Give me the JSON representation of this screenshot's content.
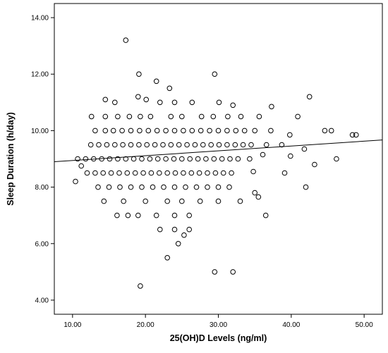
{
  "chart_data": {
    "type": "scatter",
    "title": "",
    "xlabel": "25(OH)D Levels (ng/ml)",
    "ylabel": "Sleep Duration (h/day)",
    "xlim": [
      7.5,
      52.5
    ],
    "ylim": [
      3.5,
      14.5
    ],
    "x_ticks": [
      10,
      20,
      30,
      40,
      50
    ],
    "y_ticks": [
      4,
      6,
      8,
      10,
      12,
      14
    ],
    "x_tick_labels": [
      "10.00",
      "20.00",
      "30.00",
      "40.00",
      "50.00"
    ],
    "y_tick_labels": [
      "4.00",
      "6.00",
      "8.00",
      "10.00",
      "12.00",
      "14.00"
    ],
    "grid": false,
    "legend": "none",
    "fit_line": {
      "x": [
        7.5,
        52.5
      ],
      "y": [
        8.9,
        9.67
      ]
    },
    "points": [
      [
        17.3,
        13.2
      ],
      [
        19.1,
        12.0
      ],
      [
        29.5,
        12.0
      ],
      [
        21.5,
        11.75
      ],
      [
        23.3,
        11.5
      ],
      [
        19.0,
        11.2
      ],
      [
        20.1,
        11.1
      ],
      [
        42.5,
        11.2
      ],
      [
        14.5,
        11.1
      ],
      [
        15.8,
        11.0
      ],
      [
        22.0,
        11.0
      ],
      [
        24.0,
        11.0
      ],
      [
        26.4,
        11.0
      ],
      [
        30.1,
        11.0
      ],
      [
        32.0,
        10.9
      ],
      [
        37.3,
        10.85
      ],
      [
        12.6,
        10.5
      ],
      [
        14.5,
        10.5
      ],
      [
        16.2,
        10.5
      ],
      [
        17.8,
        10.5
      ],
      [
        19.3,
        10.5
      ],
      [
        20.7,
        10.5
      ],
      [
        23.5,
        10.5
      ],
      [
        25.0,
        10.5
      ],
      [
        27.7,
        10.5
      ],
      [
        29.3,
        10.5
      ],
      [
        31.3,
        10.5
      ],
      [
        33.1,
        10.5
      ],
      [
        35.6,
        10.5
      ],
      [
        40.9,
        10.5
      ],
      [
        13.1,
        10.0
      ],
      [
        14.5,
        10.0
      ],
      [
        15.6,
        10.0
      ],
      [
        16.8,
        10.0
      ],
      [
        18.0,
        10.0
      ],
      [
        19.2,
        10.0
      ],
      [
        20.4,
        10.0
      ],
      [
        21.6,
        10.0
      ],
      [
        22.8,
        10.0
      ],
      [
        24.0,
        10.0
      ],
      [
        25.2,
        10.0
      ],
      [
        26.4,
        10.0
      ],
      [
        27.6,
        10.0
      ],
      [
        28.8,
        10.0
      ],
      [
        30.0,
        10.0
      ],
      [
        31.2,
        10.0
      ],
      [
        32.4,
        10.0
      ],
      [
        33.6,
        10.0
      ],
      [
        35.0,
        10.0
      ],
      [
        37.2,
        10.0
      ],
      [
        44.6,
        10.0
      ],
      [
        45.5,
        10.0
      ],
      [
        48.4,
        9.85
      ],
      [
        48.9,
        9.85
      ],
      [
        39.8,
        9.85
      ],
      [
        12.5,
        9.5
      ],
      [
        13.6,
        9.5
      ],
      [
        14.7,
        9.5
      ],
      [
        15.8,
        9.5
      ],
      [
        16.9,
        9.5
      ],
      [
        18.0,
        9.5
      ],
      [
        19.1,
        9.5
      ],
      [
        20.2,
        9.5
      ],
      [
        21.3,
        9.5
      ],
      [
        22.4,
        9.5
      ],
      [
        23.5,
        9.5
      ],
      [
        24.6,
        9.5
      ],
      [
        25.7,
        9.5
      ],
      [
        26.8,
        9.5
      ],
      [
        27.9,
        9.5
      ],
      [
        29.0,
        9.5
      ],
      [
        30.1,
        9.5
      ],
      [
        31.2,
        9.5
      ],
      [
        32.3,
        9.5
      ],
      [
        33.4,
        9.5
      ],
      [
        34.5,
        9.5
      ],
      [
        36.6,
        9.5
      ],
      [
        38.7,
        9.5
      ],
      [
        41.8,
        9.35
      ],
      [
        10.7,
        9.0
      ],
      [
        11.8,
        9.0
      ],
      [
        12.9,
        9.0
      ],
      [
        14.0,
        9.0
      ],
      [
        15.1,
        9.0
      ],
      [
        16.2,
        9.0
      ],
      [
        17.3,
        9.0
      ],
      [
        18.4,
        9.0
      ],
      [
        19.5,
        9.0
      ],
      [
        20.6,
        9.0
      ],
      [
        21.7,
        9.0
      ],
      [
        22.8,
        9.0
      ],
      [
        23.9,
        9.0
      ],
      [
        25.0,
        9.0
      ],
      [
        26.1,
        9.0
      ],
      [
        27.2,
        9.0
      ],
      [
        28.3,
        9.0
      ],
      [
        29.4,
        9.0
      ],
      [
        30.5,
        9.0
      ],
      [
        31.6,
        9.0
      ],
      [
        32.7,
        9.0
      ],
      [
        34.3,
        9.0
      ],
      [
        36.1,
        9.15
      ],
      [
        39.9,
        9.1
      ],
      [
        46.2,
        9.0
      ],
      [
        12.0,
        8.5
      ],
      [
        13.1,
        8.5
      ],
      [
        14.2,
        8.5
      ],
      [
        15.3,
        8.5
      ],
      [
        16.4,
        8.5
      ],
      [
        17.5,
        8.5
      ],
      [
        18.6,
        8.5
      ],
      [
        19.7,
        8.5
      ],
      [
        20.8,
        8.5
      ],
      [
        21.9,
        8.5
      ],
      [
        23.0,
        8.5
      ],
      [
        24.1,
        8.5
      ],
      [
        25.2,
        8.5
      ],
      [
        26.3,
        8.5
      ],
      [
        27.4,
        8.5
      ],
      [
        28.5,
        8.5
      ],
      [
        29.6,
        8.5
      ],
      [
        30.7,
        8.5
      ],
      [
        31.8,
        8.5
      ],
      [
        34.8,
        8.55
      ],
      [
        39.1,
        8.5
      ],
      [
        43.2,
        8.8
      ],
      [
        10.4,
        8.2
      ],
      [
        11.2,
        8.75
      ],
      [
        13.5,
        8.0
      ],
      [
        15.0,
        8.0
      ],
      [
        16.5,
        8.0
      ],
      [
        18.0,
        8.0
      ],
      [
        19.5,
        8.0
      ],
      [
        21.0,
        8.0
      ],
      [
        22.5,
        8.0
      ],
      [
        24.0,
        8.0
      ],
      [
        25.5,
        8.0
      ],
      [
        27.0,
        8.0
      ],
      [
        28.5,
        8.0
      ],
      [
        30.0,
        8.0
      ],
      [
        31.5,
        8.0
      ],
      [
        35.0,
        7.8
      ],
      [
        42.0,
        8.0
      ],
      [
        14.3,
        7.5
      ],
      [
        17.0,
        7.5
      ],
      [
        20.0,
        7.5
      ],
      [
        23.0,
        7.5
      ],
      [
        25.0,
        7.5
      ],
      [
        27.5,
        7.5
      ],
      [
        30.0,
        7.5
      ],
      [
        33.0,
        7.5
      ],
      [
        35.5,
        7.65
      ],
      [
        16.1,
        7.0
      ],
      [
        17.6,
        7.0
      ],
      [
        19.0,
        7.0
      ],
      [
        21.5,
        7.0
      ],
      [
        24.0,
        7.0
      ],
      [
        26.0,
        7.0
      ],
      [
        36.5,
        7.0
      ],
      [
        22.0,
        6.5
      ],
      [
        24.0,
        6.5
      ],
      [
        26.0,
        6.5
      ],
      [
        25.3,
        6.3
      ],
      [
        24.5,
        6.0
      ],
      [
        23.0,
        5.5
      ],
      [
        29.5,
        5.0
      ],
      [
        32.0,
        5.0
      ],
      [
        19.3,
        4.5
      ]
    ]
  }
}
